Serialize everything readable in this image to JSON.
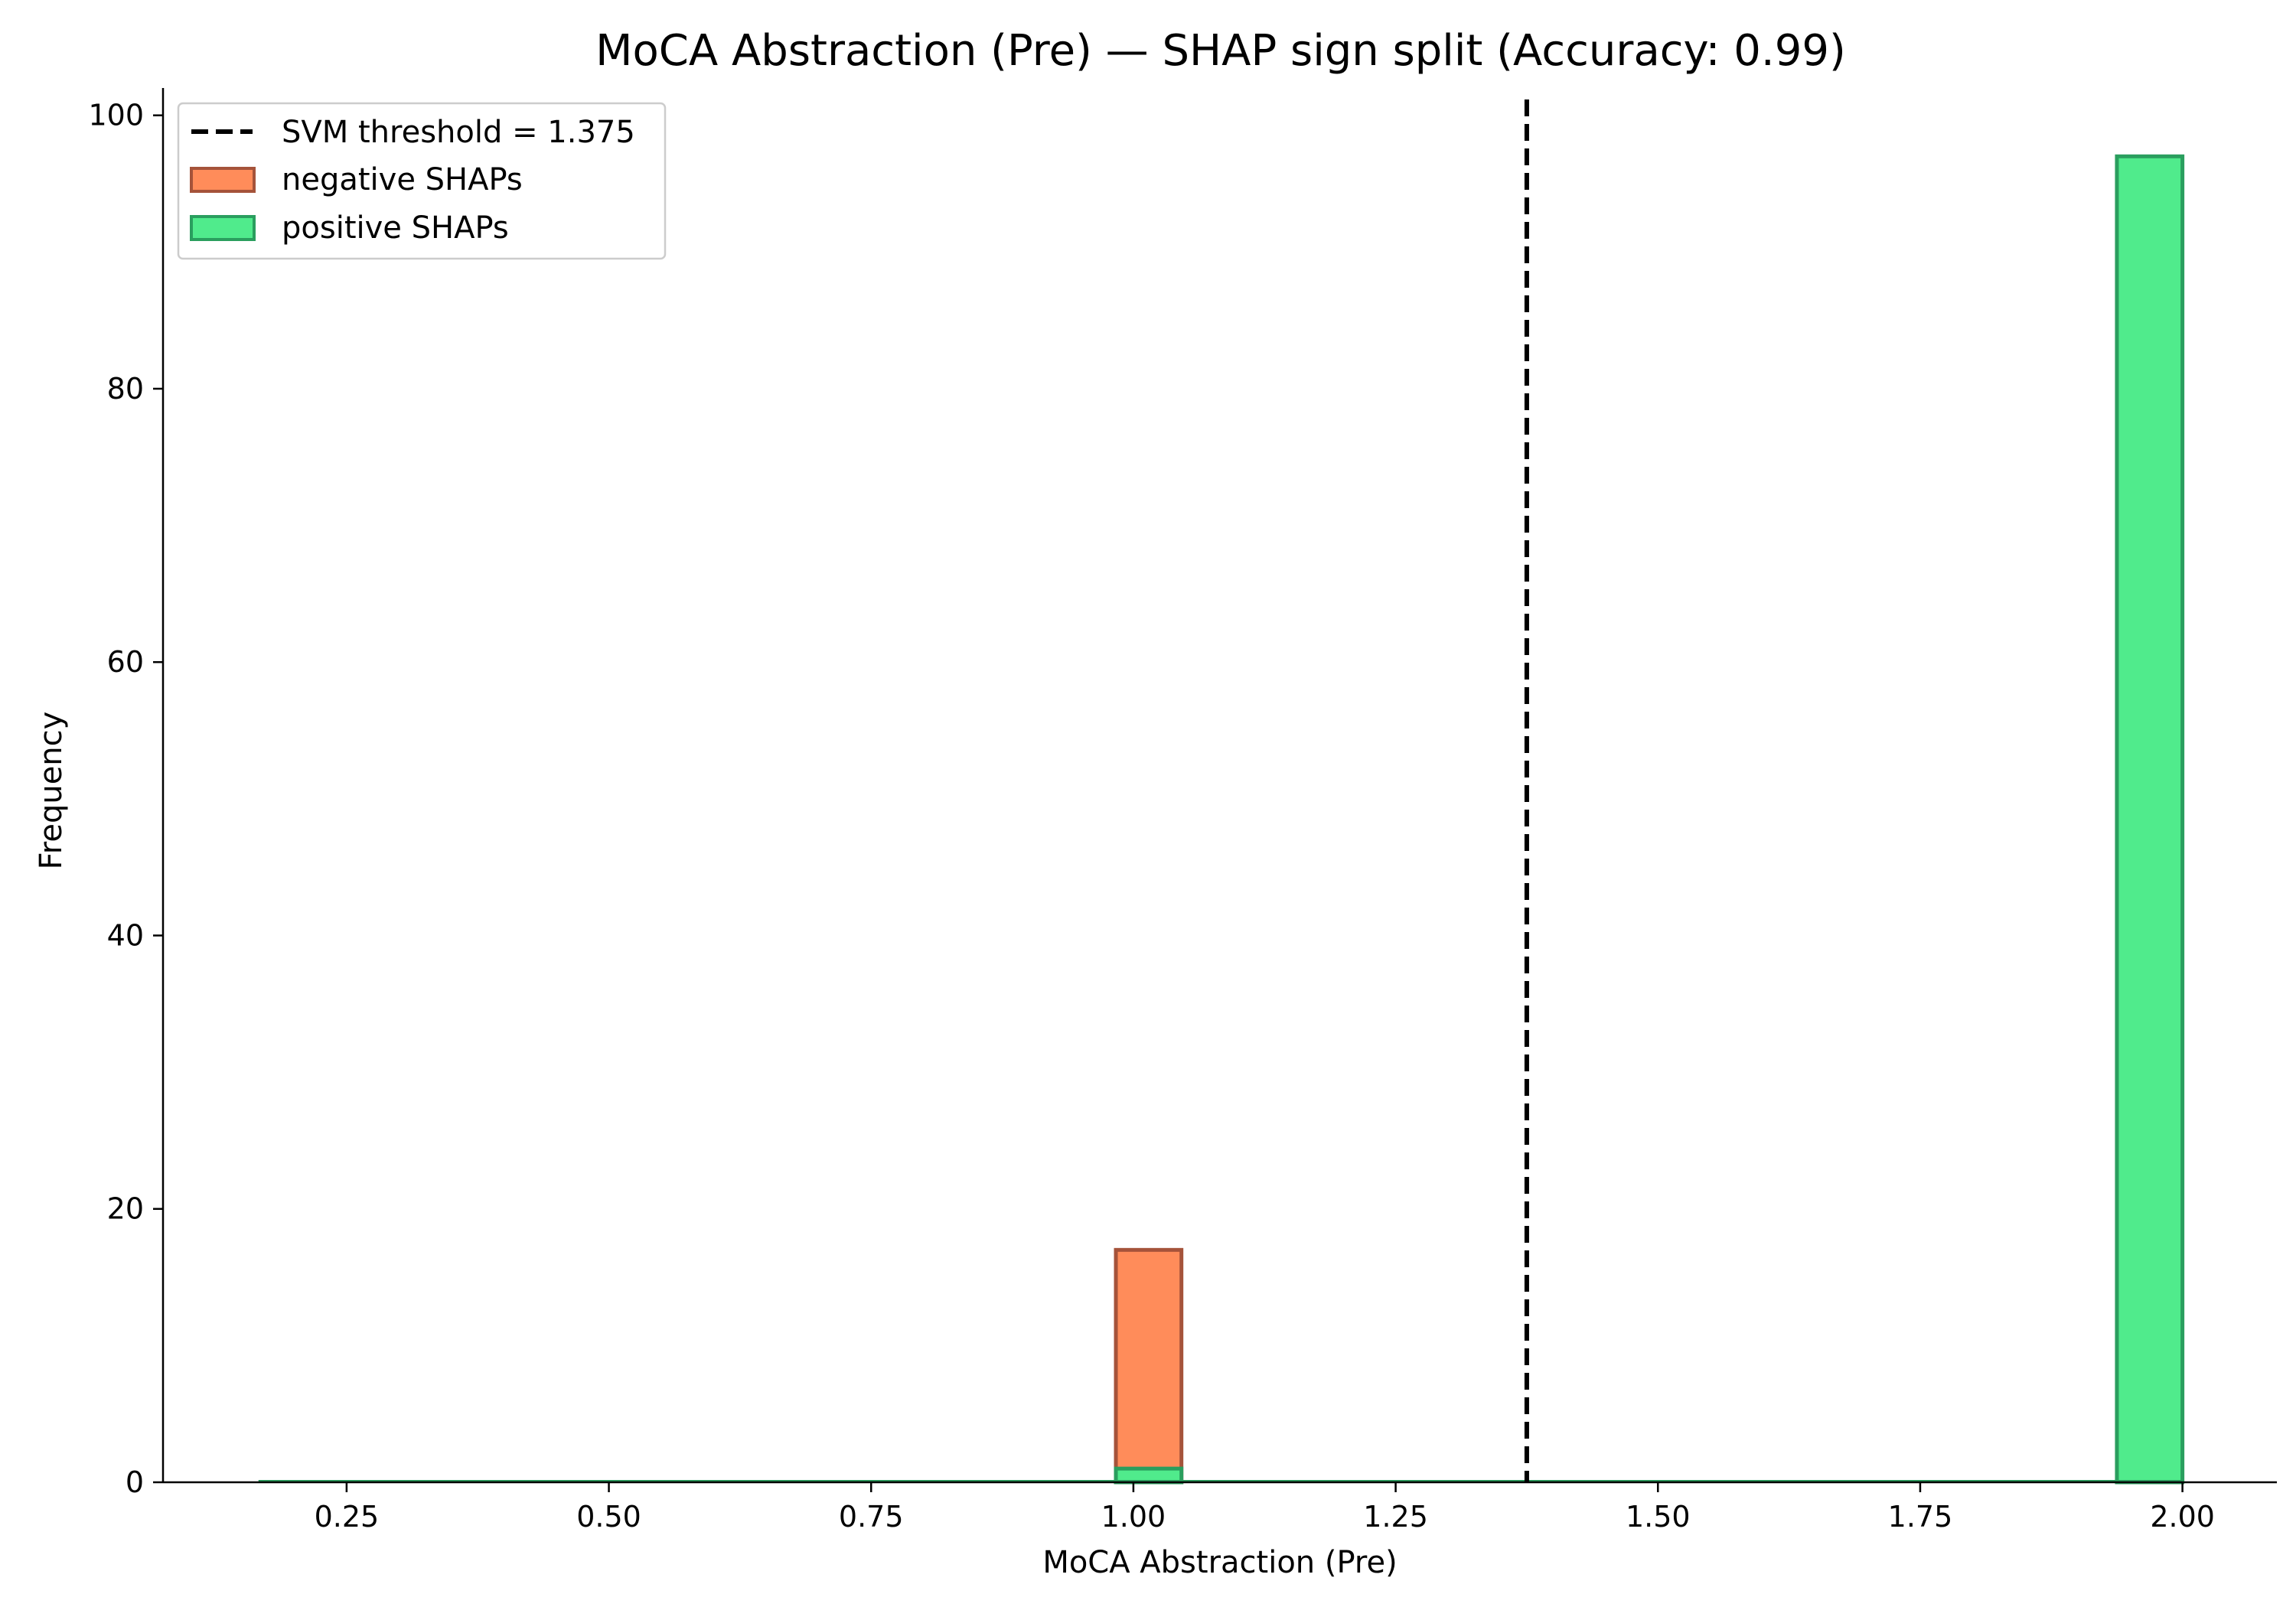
{
  "chart_data": {
    "type": "bar",
    "title": "MoCA Abstraction (Pre) — SHAP sign split (Accuracy: 0.99)",
    "xlabel": "MoCA Abstraction (Pre)",
    "ylabel": "Frequency",
    "xlim": [
      0.075,
      2.09
    ],
    "ylim": [
      0,
      102
    ],
    "xticks": [
      0.25,
      0.5,
      0.75,
      1.0,
      1.25,
      1.5,
      1.75,
      2.0
    ],
    "xtick_labels": [
      "0.25",
      "0.50",
      "0.75",
      "1.00",
      "1.25",
      "1.50",
      "1.75",
      "2.00"
    ],
    "yticks": [
      0,
      20,
      40,
      60,
      80,
      100
    ],
    "ytick_labels": [
      "0",
      "20",
      "40",
      "60",
      "80",
      "100"
    ],
    "grid": false,
    "legend_position": "top-left",
    "threshold": {
      "label": "SVM threshold = 1.375",
      "value": 1.375,
      "color": "#000000",
      "style": "dashed"
    },
    "series": [
      {
        "name": "negative SHAPs",
        "fill": "#FF8C5A",
        "edge": "#A5533A",
        "bins": [
          {
            "x0": 0.9833,
            "x1": 1.0458,
            "count": 17
          }
        ]
      },
      {
        "name": "positive SHAPs",
        "fill": "#50EB8C",
        "edge": "#2A9E5E",
        "bins": [
          {
            "x0": 0.9833,
            "x1": 1.0458,
            "count": 1
          },
          {
            "x0": 1.9375,
            "x1": 2.0,
            "count": 97
          }
        ]
      }
    ],
    "baseline_range": [
      0.166,
      2.0
    ]
  }
}
